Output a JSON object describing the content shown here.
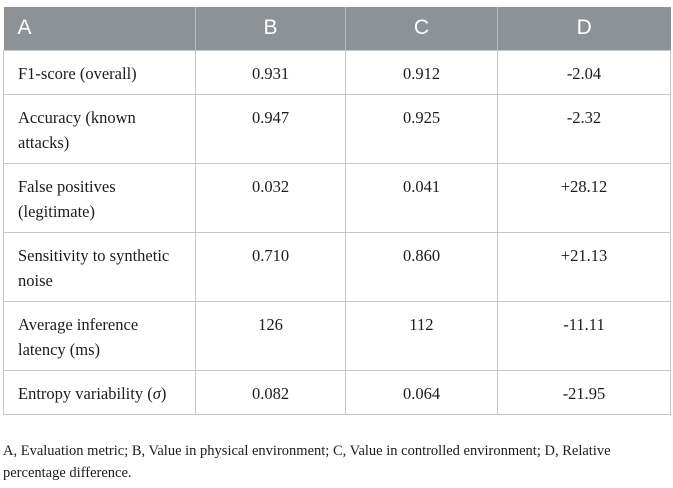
{
  "colors": {
    "header_bg": "#8d9296",
    "header_text": "#ffffff",
    "border": "#c5c8c9",
    "body_text": "#1c1c1c"
  },
  "table": {
    "columns": [
      {
        "label": "A",
        "align": "left"
      },
      {
        "label": "B",
        "align": "center"
      },
      {
        "label": "C",
        "align": "center"
      },
      {
        "label": "D",
        "align": "center"
      }
    ],
    "rows": [
      {
        "metric": "F1-score (overall)",
        "b": "0.931",
        "c": "0.912",
        "d": "-2.04"
      },
      {
        "metric": "Accuracy (known attacks)",
        "b": "0.947",
        "c": "0.925",
        "d": "-2.32"
      },
      {
        "metric": "False positives (legitimate)",
        "b": "0.032",
        "c": "0.041",
        "d": "+28.12"
      },
      {
        "metric": "Sensitivity to synthetic noise",
        "b": "0.710",
        "c": "0.860",
        "d": "+21.13"
      },
      {
        "metric": "Average inference latency (ms)",
        "b": "126",
        "c": "112",
        "d": "-11.11"
      },
      {
        "metric": "Entropy variability (σ)",
        "b": "0.082",
        "c": "0.064",
        "d": "-21.95"
      }
    ],
    "footnote": "A, Evaluation metric; B, Value in physical environment; C, Value in controlled environment; D, Relative percentage difference."
  }
}
